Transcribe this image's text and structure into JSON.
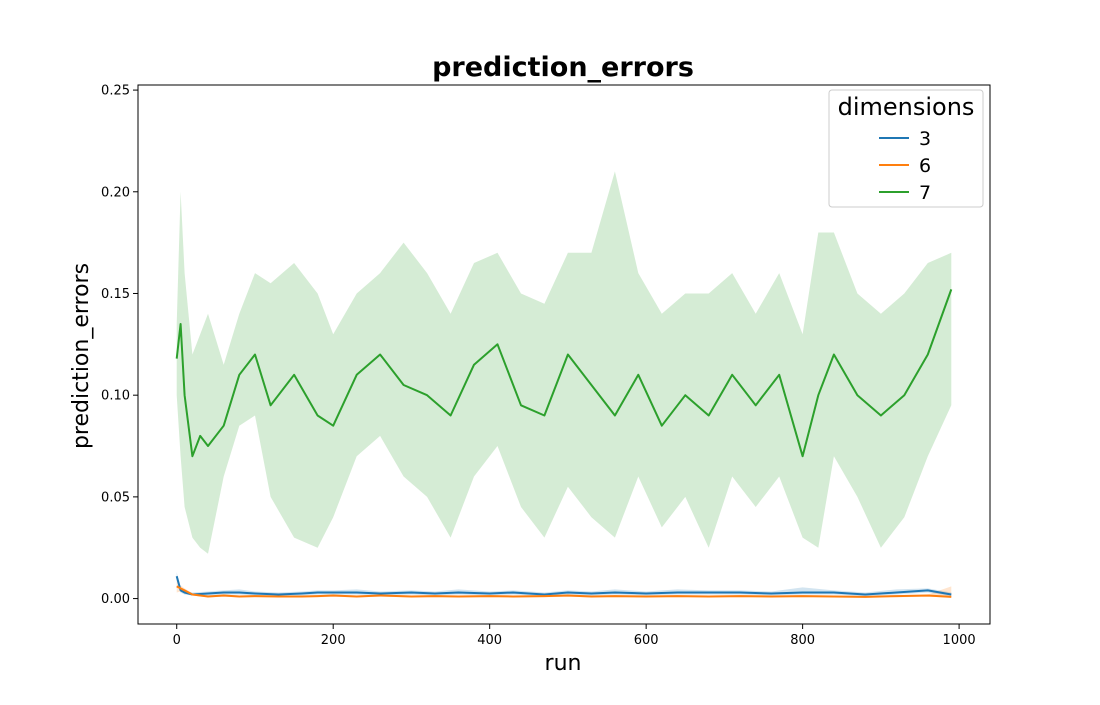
{
  "chart_data": {
    "type": "line",
    "title": "prediction_errors",
    "xlabel": "run",
    "ylabel": "prediction_errors",
    "xlim": [
      -49.5,
      1039.5
    ],
    "ylim": [
      -0.0125,
      0.2525
    ],
    "xticks": [
      0,
      200,
      400,
      600,
      800,
      1000
    ],
    "xtick_labels": [
      "0",
      "200",
      "400",
      "600",
      "800",
      "1000"
    ],
    "yticks": [
      0.0,
      0.05,
      0.1,
      0.15,
      0.2,
      0.25
    ],
    "ytick_labels": [
      "0.00",
      "0.05",
      "0.10",
      "0.15",
      "0.20",
      "0.25"
    ],
    "grid": false,
    "legend": {
      "title": "dimensions",
      "placement": "top-right"
    },
    "series": [
      {
        "name": "3",
        "color": "#1f77b4",
        "x": [
          0,
          5,
          10,
          20,
          40,
          60,
          80,
          100,
          130,
          160,
          180,
          200,
          230,
          260,
          300,
          330,
          360,
          400,
          430,
          470,
          500,
          530,
          560,
          600,
          640,
          680,
          720,
          760,
          800,
          840,
          880,
          920,
          960,
          990
        ],
        "y": [
          0.011,
          0.004,
          0.003,
          0.002,
          0.0025,
          0.003,
          0.003,
          0.0025,
          0.002,
          0.0025,
          0.003,
          0.003,
          0.003,
          0.0025,
          0.003,
          0.0025,
          0.003,
          0.0025,
          0.003,
          0.002,
          0.003,
          0.0025,
          0.003,
          0.0025,
          0.003,
          0.003,
          0.003,
          0.0025,
          0.003,
          0.003,
          0.002,
          0.003,
          0.004,
          0.002
        ],
        "ci_low": [
          0.009,
          0.003,
          0.002,
          0.0015,
          0.0015,
          0.002,
          0.002,
          0.0015,
          0.0012,
          0.0015,
          0.002,
          0.002,
          0.002,
          0.0015,
          0.002,
          0.0015,
          0.002,
          0.0015,
          0.002,
          0.0012,
          0.002,
          0.0015,
          0.002,
          0.0015,
          0.002,
          0.002,
          0.002,
          0.0015,
          0.002,
          0.002,
          0.0012,
          0.002,
          0.003,
          0.0012
        ],
        "ci_high": [
          0.013,
          0.005,
          0.004,
          0.003,
          0.0035,
          0.004,
          0.0045,
          0.0035,
          0.003,
          0.0035,
          0.004,
          0.004,
          0.0045,
          0.0035,
          0.004,
          0.0035,
          0.0045,
          0.0035,
          0.004,
          0.003,
          0.004,
          0.0035,
          0.0045,
          0.0035,
          0.0045,
          0.004,
          0.004,
          0.0035,
          0.0055,
          0.004,
          0.003,
          0.0045,
          0.005,
          0.003
        ]
      },
      {
        "name": "6",
        "color": "#ff7f0e",
        "x": [
          0,
          5,
          10,
          20,
          40,
          60,
          80,
          100,
          130,
          160,
          180,
          200,
          230,
          260,
          300,
          330,
          360,
          400,
          430,
          470,
          500,
          530,
          560,
          600,
          640,
          680,
          720,
          760,
          800,
          840,
          880,
          920,
          960,
          990
        ],
        "y": [
          0.006,
          0.005,
          0.004,
          0.002,
          0.001,
          0.0015,
          0.001,
          0.0012,
          0.001,
          0.001,
          0.0012,
          0.0015,
          0.001,
          0.0015,
          0.001,
          0.0012,
          0.001,
          0.0012,
          0.001,
          0.0012,
          0.0015,
          0.001,
          0.0012,
          0.001,
          0.0012,
          0.001,
          0.0012,
          0.001,
          0.0012,
          0.001,
          0.0008,
          0.0012,
          0.0015,
          0.0008
        ],
        "ci_low": [
          0.003,
          0.0035,
          0.003,
          0.0015,
          0.0006,
          0.0009,
          0.0006,
          0.0007,
          0.0006,
          0.0006,
          0.0007,
          0.0009,
          0.0006,
          0.0009,
          0.0006,
          0.0007,
          0.0006,
          0.0007,
          0.0006,
          0.0007,
          0.0009,
          0.0006,
          0.0007,
          0.0006,
          0.0007,
          0.0006,
          0.0007,
          0.0006,
          0.0007,
          0.0006,
          0.0005,
          0.0007,
          0.0009,
          0.0005
        ],
        "ci_high": [
          0.009,
          0.0065,
          0.005,
          0.0025,
          0.0015,
          0.002,
          0.0015,
          0.0017,
          0.0015,
          0.0015,
          0.0017,
          0.002,
          0.0015,
          0.002,
          0.0015,
          0.0017,
          0.0015,
          0.0017,
          0.0015,
          0.0017,
          0.002,
          0.0015,
          0.0017,
          0.0015,
          0.0017,
          0.0015,
          0.0017,
          0.0015,
          0.0017,
          0.0015,
          0.0012,
          0.0017,
          0.002,
          0.006
        ]
      },
      {
        "name": "7",
        "color": "#2ca02c",
        "x": [
          0,
          5,
          10,
          20,
          30,
          40,
          60,
          80,
          100,
          120,
          150,
          180,
          200,
          230,
          260,
          290,
          320,
          350,
          380,
          410,
          440,
          470,
          500,
          530,
          560,
          590,
          620,
          650,
          680,
          710,
          740,
          770,
          800,
          820,
          840,
          870,
          900,
          930,
          960,
          990
        ],
        "y": [
          0.118,
          0.135,
          0.1,
          0.07,
          0.08,
          0.075,
          0.085,
          0.11,
          0.12,
          0.095,
          0.11,
          0.09,
          0.085,
          0.11,
          0.12,
          0.105,
          0.1,
          0.09,
          0.115,
          0.125,
          0.095,
          0.09,
          0.12,
          0.105,
          0.09,
          0.11,
          0.085,
          0.1,
          0.09,
          0.11,
          0.095,
          0.11,
          0.07,
          0.1,
          0.12,
          0.1,
          0.09,
          0.1,
          0.12,
          0.152
        ],
        "ci_low": [
          0.1,
          0.07,
          0.045,
          0.03,
          0.025,
          0.022,
          0.06,
          0.085,
          0.09,
          0.05,
          0.03,
          0.025,
          0.04,
          0.07,
          0.08,
          0.06,
          0.05,
          0.03,
          0.06,
          0.075,
          0.045,
          0.03,
          0.055,
          0.04,
          0.03,
          0.06,
          0.035,
          0.05,
          0.025,
          0.06,
          0.045,
          0.06,
          0.03,
          0.025,
          0.07,
          0.05,
          0.025,
          0.04,
          0.07,
          0.095
        ],
        "ci_high": [
          0.135,
          0.2,
          0.16,
          0.12,
          0.13,
          0.14,
          0.115,
          0.14,
          0.16,
          0.155,
          0.165,
          0.15,
          0.13,
          0.15,
          0.16,
          0.175,
          0.16,
          0.14,
          0.165,
          0.17,
          0.15,
          0.145,
          0.17,
          0.17,
          0.21,
          0.16,
          0.14,
          0.15,
          0.15,
          0.16,
          0.14,
          0.16,
          0.13,
          0.18,
          0.18,
          0.15,
          0.14,
          0.15,
          0.165,
          0.17
        ]
      }
    ]
  }
}
